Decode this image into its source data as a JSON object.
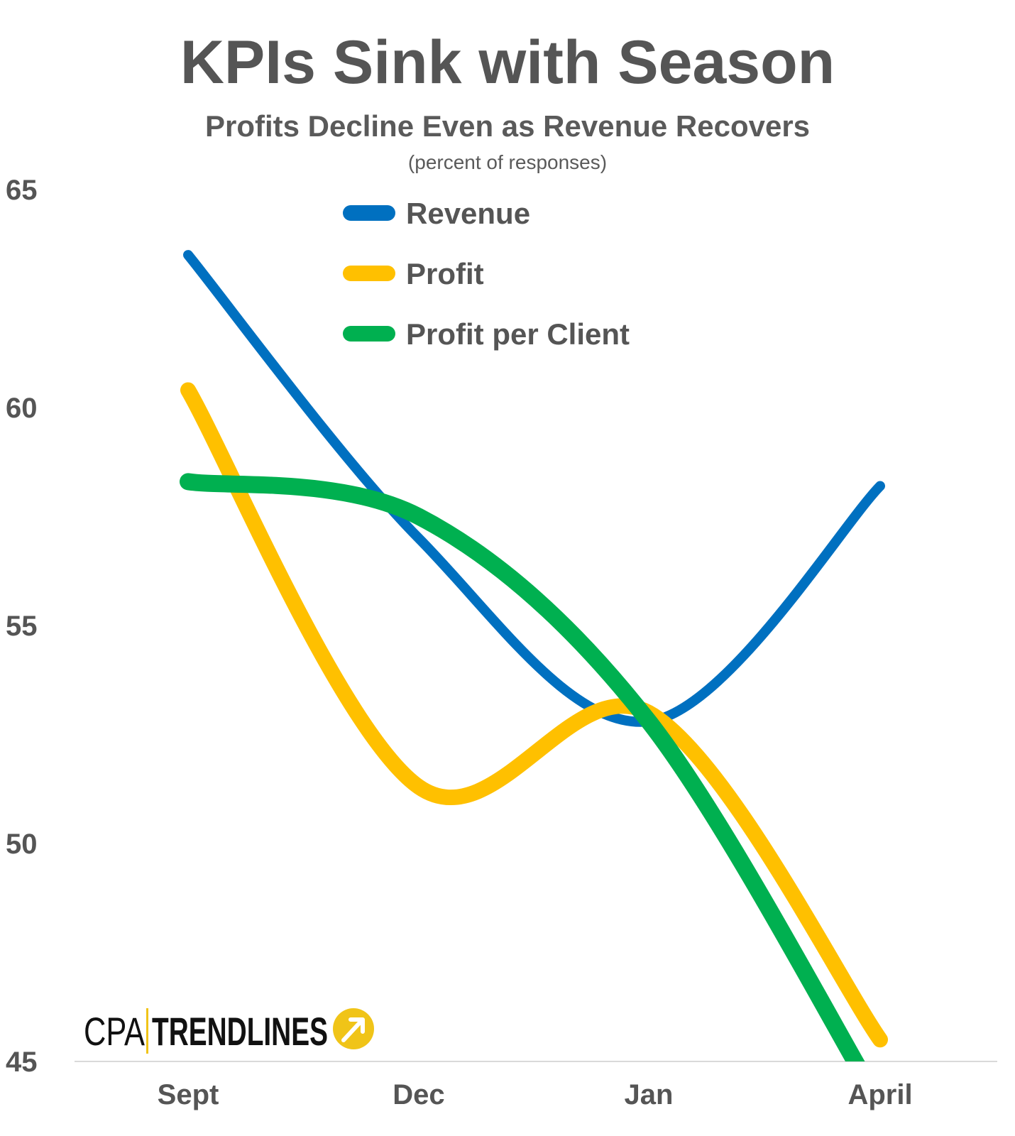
{
  "chart_data": {
    "type": "line",
    "title": "KPIs Sink with Season",
    "subtitle": "Profits Decline Even as Revenue Recovers",
    "note": "(percent of responses)",
    "xlabel": "",
    "ylabel": "",
    "categories": [
      "Sept",
      "Dec",
      "Jan",
      "April"
    ],
    "y_ticks": [
      "65",
      "60",
      "55",
      "50",
      "45"
    ],
    "ylim": [
      45,
      65
    ],
    "grid": false,
    "legend_position": "top-center",
    "series": [
      {
        "name": "Revenue",
        "color": "#0070C0",
        "values": [
          63.5,
          57.0,
          52.8,
          58.2
        ]
      },
      {
        "name": "Profit",
        "color": "#FFC000",
        "values": [
          60.4,
          51.3,
          53.0,
          45.5
        ]
      },
      {
        "name": "Profit per Client",
        "color": "#00B050",
        "values": [
          58.3,
          57.5,
          52.8,
          44.0
        ]
      }
    ]
  },
  "logo": {
    "text_light": "CPA",
    "text_bold": "TRENDLINES",
    "badge_color": "#F0C418",
    "icon": "arrow-up-right-icon"
  }
}
